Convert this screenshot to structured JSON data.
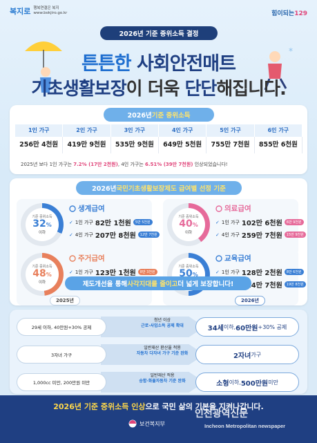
{
  "header": {
    "logo_left_mark": "복지로",
    "logo_left_slogan": "행복연결은 복지",
    "logo_left_url": "www.bokjiro.go.kr",
    "logo_right_text": "힘이되는",
    "logo_right_number": "129",
    "title_pill": "2026년 기준 중위소득 결정"
  },
  "headline": {
    "line1_a": "튼튼한 ",
    "line1_b": "사회안전매트",
    "line2_a": "기초생활보장",
    "line2_b": "이 더욱 ",
    "line2_c": "단단",
    "line2_d": "해집니다."
  },
  "income": {
    "pill_a": "2026년 ",
    "pill_b": "기준 중위소득",
    "headers": [
      "1인 가구",
      "2인 가구",
      "3인 가구",
      "4인 가구",
      "5인 가구",
      "6인 가구"
    ],
    "values": [
      "256만 4천원",
      "419만 9천원",
      "535만 9천원",
      "649만 5천원",
      "755만 7천원",
      "855만 6천원"
    ],
    "note_a": "2025년 보다 1인 가구는 ",
    "note_b": "7.2% (17만 2천원)",
    "note_c": ", 4인 가구는 ",
    "note_d": "6.51% (39만 7천원)",
    "note_e": " 인상되었습니다!"
  },
  "benefits": {
    "pill_a": "2026년 ",
    "pill_b": "국민기초생활보장제도 급여별 선정 기준",
    "cards": [
      {
        "title": "생계급여",
        "ring_label": "기준 중위소득",
        "pct": "32",
        "pct_unit": "%",
        "below": "이하",
        "color": "#3a7fd5",
        "row1_label": "1인 가구",
        "row1_amt": "82만 1천원",
        "row1_chip": "5만 5천원",
        "row2_label": "4인 가구",
        "row2_amt": "207만 8천원",
        "row2_chip": "12만 7천원"
      },
      {
        "title": "의료급여",
        "ring_label": "기준 중위소득",
        "pct": "40",
        "pct_unit": "%",
        "below": "이하",
        "color": "#e66a9a",
        "row1_label": "1인 가구",
        "row1_amt": "102만 6천원",
        "row1_chip": "6만 9천원",
        "row2_label": "4인 가구",
        "row2_amt": "259만 7천원",
        "row2_chip": "15만 9천원"
      },
      {
        "title": "주거급여",
        "ring_label": "기준 중위소득",
        "pct": "48",
        "pct_unit": "%",
        "below": "이하",
        "color": "#e8805c",
        "row1_label": "1인 가구",
        "row1_amt": "123만 1천원",
        "row1_chip": "8만 3천원",
        "row2_label": "4인 가구",
        "row2_amt": "311만 7천원",
        "row2_chip": "19만 1천원"
      },
      {
        "title": "교육급여",
        "ring_label": "기준 중위소득",
        "pct": "50",
        "pct_unit": "%",
        "below": "이하",
        "color": "#3a7fd5",
        "row1_label": "1인 가구",
        "row1_amt": "128만 2천원",
        "row1_chip": "8만 6천원",
        "row2_label": "4인 가구",
        "row2_amt": "324만 7천원",
        "row2_chip": "19만 8천원"
      }
    ]
  },
  "improvements": {
    "pill_a": "제도개선을 통해 ",
    "pill_b": "사각지대를 줄이고",
    "pill_c": " 더 넓게 보장합니다!",
    "year_before": "2025년",
    "year_after": "2026년",
    "rows": [
      {
        "before_a": "29세 이하, 40만원+30% 공제",
        "mid_a": "청년 이상",
        "mid_b": "근로·사업소득 공제 확대",
        "after_a": "34세",
        "after_b": " 이하, ",
        "after_c": "60만원",
        "after_d": "+30% 공제"
      },
      {
        "before_a": "3자녀 가구",
        "mid_a": "일반재산 환산율 적용",
        "mid_b": "자동차 다자녀 가구 기준 완화",
        "after_a": "2자녀",
        "after_b": " 가구",
        "after_c": "",
        "after_d": ""
      },
      {
        "before_a": "1,000cc 미만, 200만원 미만",
        "mid_a": "일반재산 적용",
        "mid_b": "승합·화물자동차 기준 완화",
        "after_a": "소형",
        "after_b": " 이하, ",
        "after_c": "500만원",
        "after_d": " 미만"
      }
    ]
  },
  "footer": {
    "text_a": "2026년 기준 중위소득 인상",
    "text_b": "으로 국민 삶의 기본을 지켜나갑니다.",
    "ministry": "보건복지부",
    "watermark": "인천광역신문",
    "watermark_en": "Incheon Metropolitan newspaper"
  }
}
